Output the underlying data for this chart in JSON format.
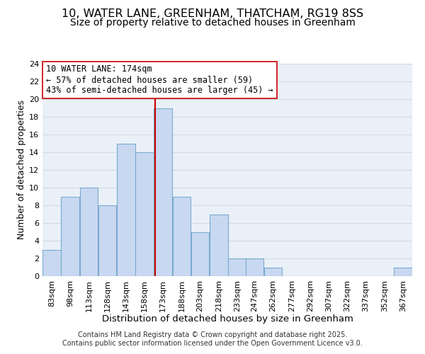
{
  "title1": "10, WATER LANE, GREENHAM, THATCHAM, RG19 8SS",
  "title2": "Size of property relative to detached houses in Greenham",
  "xlabel": "Distribution of detached houses by size in Greenham",
  "ylabel": "Number of detached properties",
  "bin_edges": [
    83,
    98,
    113,
    128,
    143,
    158,
    173,
    188,
    203,
    218,
    233,
    247,
    262,
    277,
    292,
    307,
    322,
    337,
    352,
    367,
    382
  ],
  "bar_heights": [
    3,
    9,
    10,
    8,
    15,
    14,
    19,
    9,
    5,
    7,
    2,
    2,
    1,
    0,
    0,
    0,
    0,
    0,
    0,
    1
  ],
  "bar_color": "#c8d8f0",
  "bar_edgecolor": "#7aaad0",
  "vline_x": 174,
  "vline_color": "#cc0000",
  "annotation_title": "10 WATER LANE: 174sqm",
  "annotation_line1": "← 57% of detached houses are smaller (59)",
  "annotation_line2": "43% of semi-detached houses are larger (45) →",
  "annotation_box_edgecolor": "#cc0000",
  "annotation_box_facecolor": "#ffffff",
  "ylim": [
    0,
    24
  ],
  "yticks": [
    0,
    2,
    4,
    6,
    8,
    10,
    12,
    14,
    16,
    18,
    20,
    22,
    24
  ],
  "grid_color": "#d0dce8",
  "bg_color": "#eaf0f8",
  "footnote1": "Contains HM Land Registry data © Crown copyright and database right 2025.",
  "footnote2": "Contains public sector information licensed under the Open Government Licence v3.0.",
  "title1_fontsize": 11.5,
  "title2_fontsize": 10,
  "xlabel_fontsize": 9.5,
  "ylabel_fontsize": 9,
  "tick_fontsize": 8,
  "annotation_fontsize": 8.5,
  "footnote_fontsize": 7
}
